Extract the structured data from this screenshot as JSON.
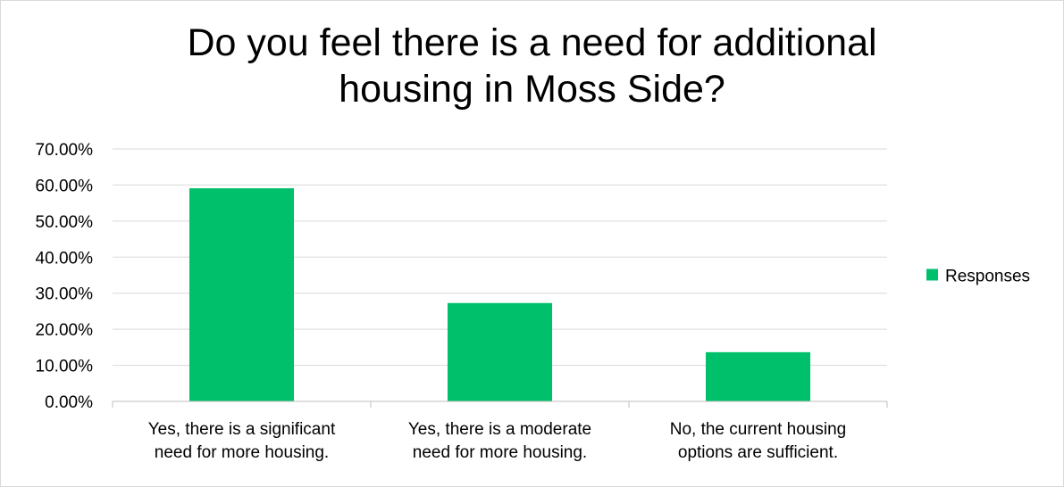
{
  "chart_data": {
    "type": "bar",
    "title": "Do you feel there is a need for additional housing in Moss Side?",
    "title_lines": [
      "Do you feel there is a need for additional",
      "housing in Moss Side?"
    ],
    "categories": [
      [
        "Yes, there is a significant",
        "need for more housing."
      ],
      [
        "Yes, there is a moderate",
        "need for more housing."
      ],
      [
        "No, the current housing",
        "options are sufficient."
      ]
    ],
    "series": [
      {
        "name": "Responses",
        "values": [
          59.09,
          27.27,
          13.64
        ],
        "color": "#00C06B"
      }
    ],
    "ylim": [
      0,
      70
    ],
    "yticks": [
      0,
      10,
      20,
      30,
      40,
      50,
      60,
      70
    ],
    "ytick_labels": [
      "0.00%",
      "10.00%",
      "20.00%",
      "30.00%",
      "40.00%",
      "50.00%",
      "60.00%",
      "70.00%"
    ],
    "xlabel": "",
    "ylabel": "",
    "grid": true,
    "legend": "right",
    "colors": {
      "gridline": "#d9d9d9",
      "axis": "#bfbfbf"
    }
  }
}
